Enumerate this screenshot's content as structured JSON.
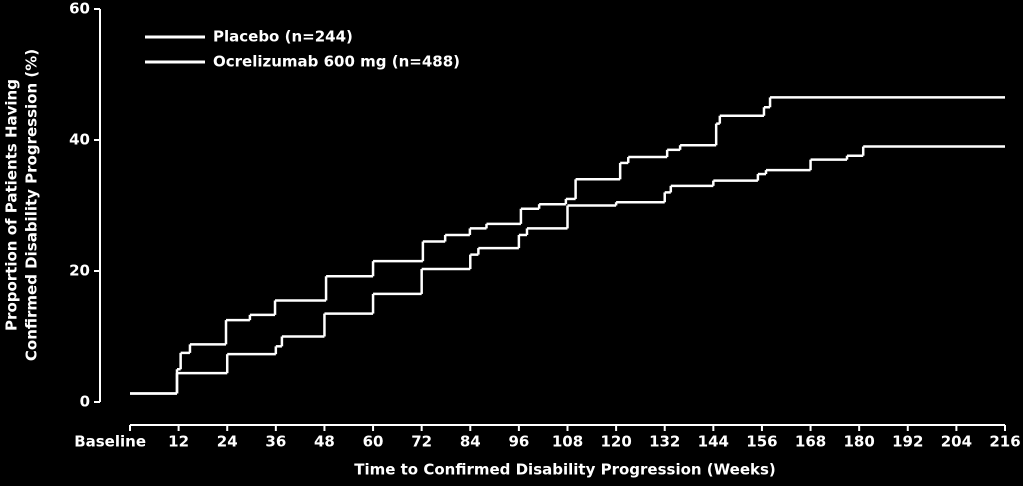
{
  "chart_data": {
    "type": "step",
    "xlabel": "Time to Confirmed Disability Progression (Weeks)",
    "ylabel": [
      "Proportion of Patients Having",
      "Confirmed Disability Progression (%)"
    ],
    "xlim": [
      0,
      216
    ],
    "ylim": [
      0,
      60
    ],
    "xticks": [
      {
        "value": 0,
        "label": "Baseline"
      },
      12,
      24,
      36,
      48,
      60,
      72,
      84,
      96,
      108,
      120,
      132,
      144,
      156,
      168,
      180,
      192,
      204,
      216
    ],
    "yticks": [
      0,
      20,
      40,
      60
    ],
    "legend": "top-left",
    "series": [
      {
        "name": "Placebo (n=244)",
        "color": "#ffffff",
        "x": [
          0,
          11.6,
          12.5,
          14.8,
          23.7,
          29.6,
          35.8,
          48.4,
          60,
          72.3,
          77.8,
          83.9,
          88,
          96.5,
          101,
          107.6,
          110,
          121,
          123,
          132.6,
          135.8,
          144.7,
          145.6,
          156.5,
          158,
          216
        ],
        "values": [
          1.3,
          5,
          7.5,
          8.8,
          12.5,
          13.3,
          15.5,
          19.2,
          21.5,
          24.5,
          25.5,
          26.5,
          27.2,
          29.5,
          30.2,
          31,
          34,
          36.5,
          37.4,
          38.5,
          39.2,
          42.5,
          43.7,
          45,
          46.5,
          46.5
        ]
      },
      {
        "name": "Ocrelizumab 600 mg (n=488)",
        "color": "#ffffff",
        "x": [
          0,
          11.6,
          24,
          36,
          37.5,
          48,
          60,
          72,
          84,
          86,
          96,
          98,
          108,
          120,
          132,
          133.5,
          144,
          155,
          157,
          168,
          177,
          181,
          216
        ],
        "values": [
          1.3,
          4.4,
          7.3,
          8.5,
          10,
          13.5,
          16.5,
          20.3,
          22.5,
          23.5,
          25.5,
          26.5,
          30,
          30.5,
          32,
          33,
          33.8,
          34.8,
          35.4,
          37,
          37.6,
          39,
          39
        ]
      }
    ]
  }
}
